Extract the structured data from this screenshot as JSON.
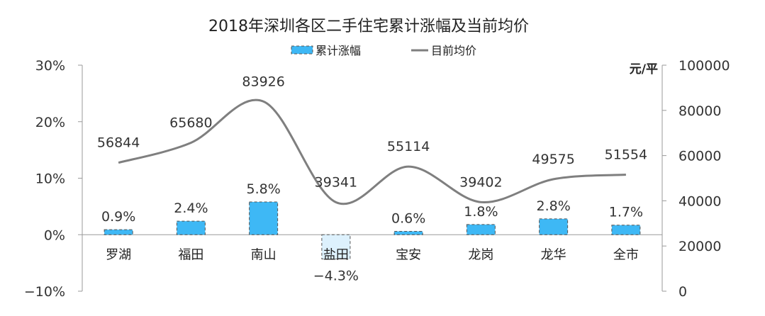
{
  "chart_data": {
    "type": "bar+line",
    "title": "2018年深圳各区二手住宅累计涨幅及当前均价",
    "categories": [
      "罗湖",
      "福田",
      "南山",
      "盐田",
      "宝安",
      "龙岗",
      "龙华",
      "全市"
    ],
    "series": [
      {
        "name": "累计涨幅",
        "type": "bar",
        "axis": "left",
        "values": [
          0.9,
          2.4,
          5.8,
          -4.3,
          0.6,
          1.8,
          2.8,
          1.7
        ],
        "labels": [
          "0.9%",
          "2.4%",
          "5.8%",
          "-4.3%",
          "0.6%",
          "1.8%",
          "2.8%",
          "1.7%"
        ],
        "color": "#3EB8F5",
        "negative_color": "#DDF1FD",
        "border": "dashed"
      },
      {
        "name": "目前均价",
        "type": "line",
        "axis": "right",
        "smooth": true,
        "values": [
          56844,
          65680,
          83926,
          39341,
          55114,
          39402,
          49575,
          51554
        ],
        "labels": [
          "56844",
          "65680",
          "83926",
          "39341",
          "55114",
          "39402",
          "49575",
          "51554"
        ],
        "color": "#7F7F7F"
      }
    ],
    "y_left": {
      "ylim": [
        -10,
        30
      ],
      "ticks": [
        "30%",
        "20%",
        "10%",
        "0%",
        "−10%"
      ]
    },
    "y_right": {
      "ylim": [
        0,
        100000
      ],
      "ticks": [
        "100000",
        "80000",
        "60000",
        "40000",
        "20000",
        "0"
      ],
      "unit": "元/平"
    },
    "legend": {
      "position": "top-center"
    },
    "grid": false
  }
}
